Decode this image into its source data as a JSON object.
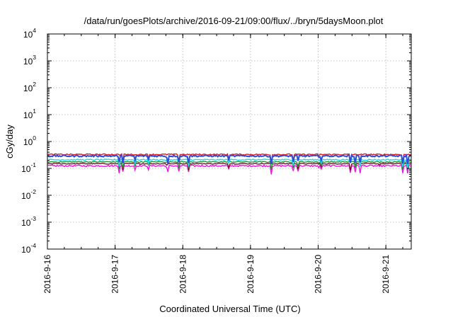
{
  "chart_data": {
    "type": "line",
    "title": "/data/run/goesPlots/archive/2016-09-21/09:00/flux/../bryn/5daysMoon.plot",
    "xlabel": "Coordinated Universal Time (UTC)",
    "ylabel": "cGy/day",
    "yscale": "log",
    "ylim": [
      0.0001,
      10000
    ],
    "xlim": [
      "2016-09-16 00:00",
      "2016-09-21 09:00"
    ],
    "grid": true,
    "x_ticks": [
      "2016-9-16",
      "2016-9-17",
      "2016-9-18",
      "2016-9-19",
      "2016-9-20",
      "2016-9-21"
    ],
    "y_ticks": [
      {
        "base": "10",
        "exp": "4",
        "value": 10000
      },
      {
        "base": "10",
        "exp": "3",
        "value": 1000
      },
      {
        "base": "10",
        "exp": "2",
        "value": 100
      },
      {
        "base": "10",
        "exp": "1",
        "value": 10
      },
      {
        "base": "10",
        "exp": "0",
        "value": 1
      },
      {
        "base": "10",
        "exp": "-1",
        "value": 0.1
      },
      {
        "base": "10",
        "exp": "-2",
        "value": 0.01
      },
      {
        "base": "10",
        "exp": "-3",
        "value": 0.001
      },
      {
        "base": "10",
        "exp": "-4",
        "value": 0.0001
      }
    ],
    "series": [
      {
        "color": "#e0191e",
        "level": 0.33,
        "spread": 0.055
      },
      {
        "color": "#2b50d8",
        "level": 0.29,
        "spread": 0.07
      },
      {
        "color": "#19d9e6",
        "level": 0.21,
        "spread": 0.05
      },
      {
        "color": "#2e8b3a",
        "level": 0.175,
        "spread": 0.045
      },
      {
        "color": "#7a1428",
        "level": 0.15,
        "spread": 0.04
      },
      {
        "color": "#f013e6",
        "level": 0.125,
        "spread": 0.07
      }
    ]
  }
}
